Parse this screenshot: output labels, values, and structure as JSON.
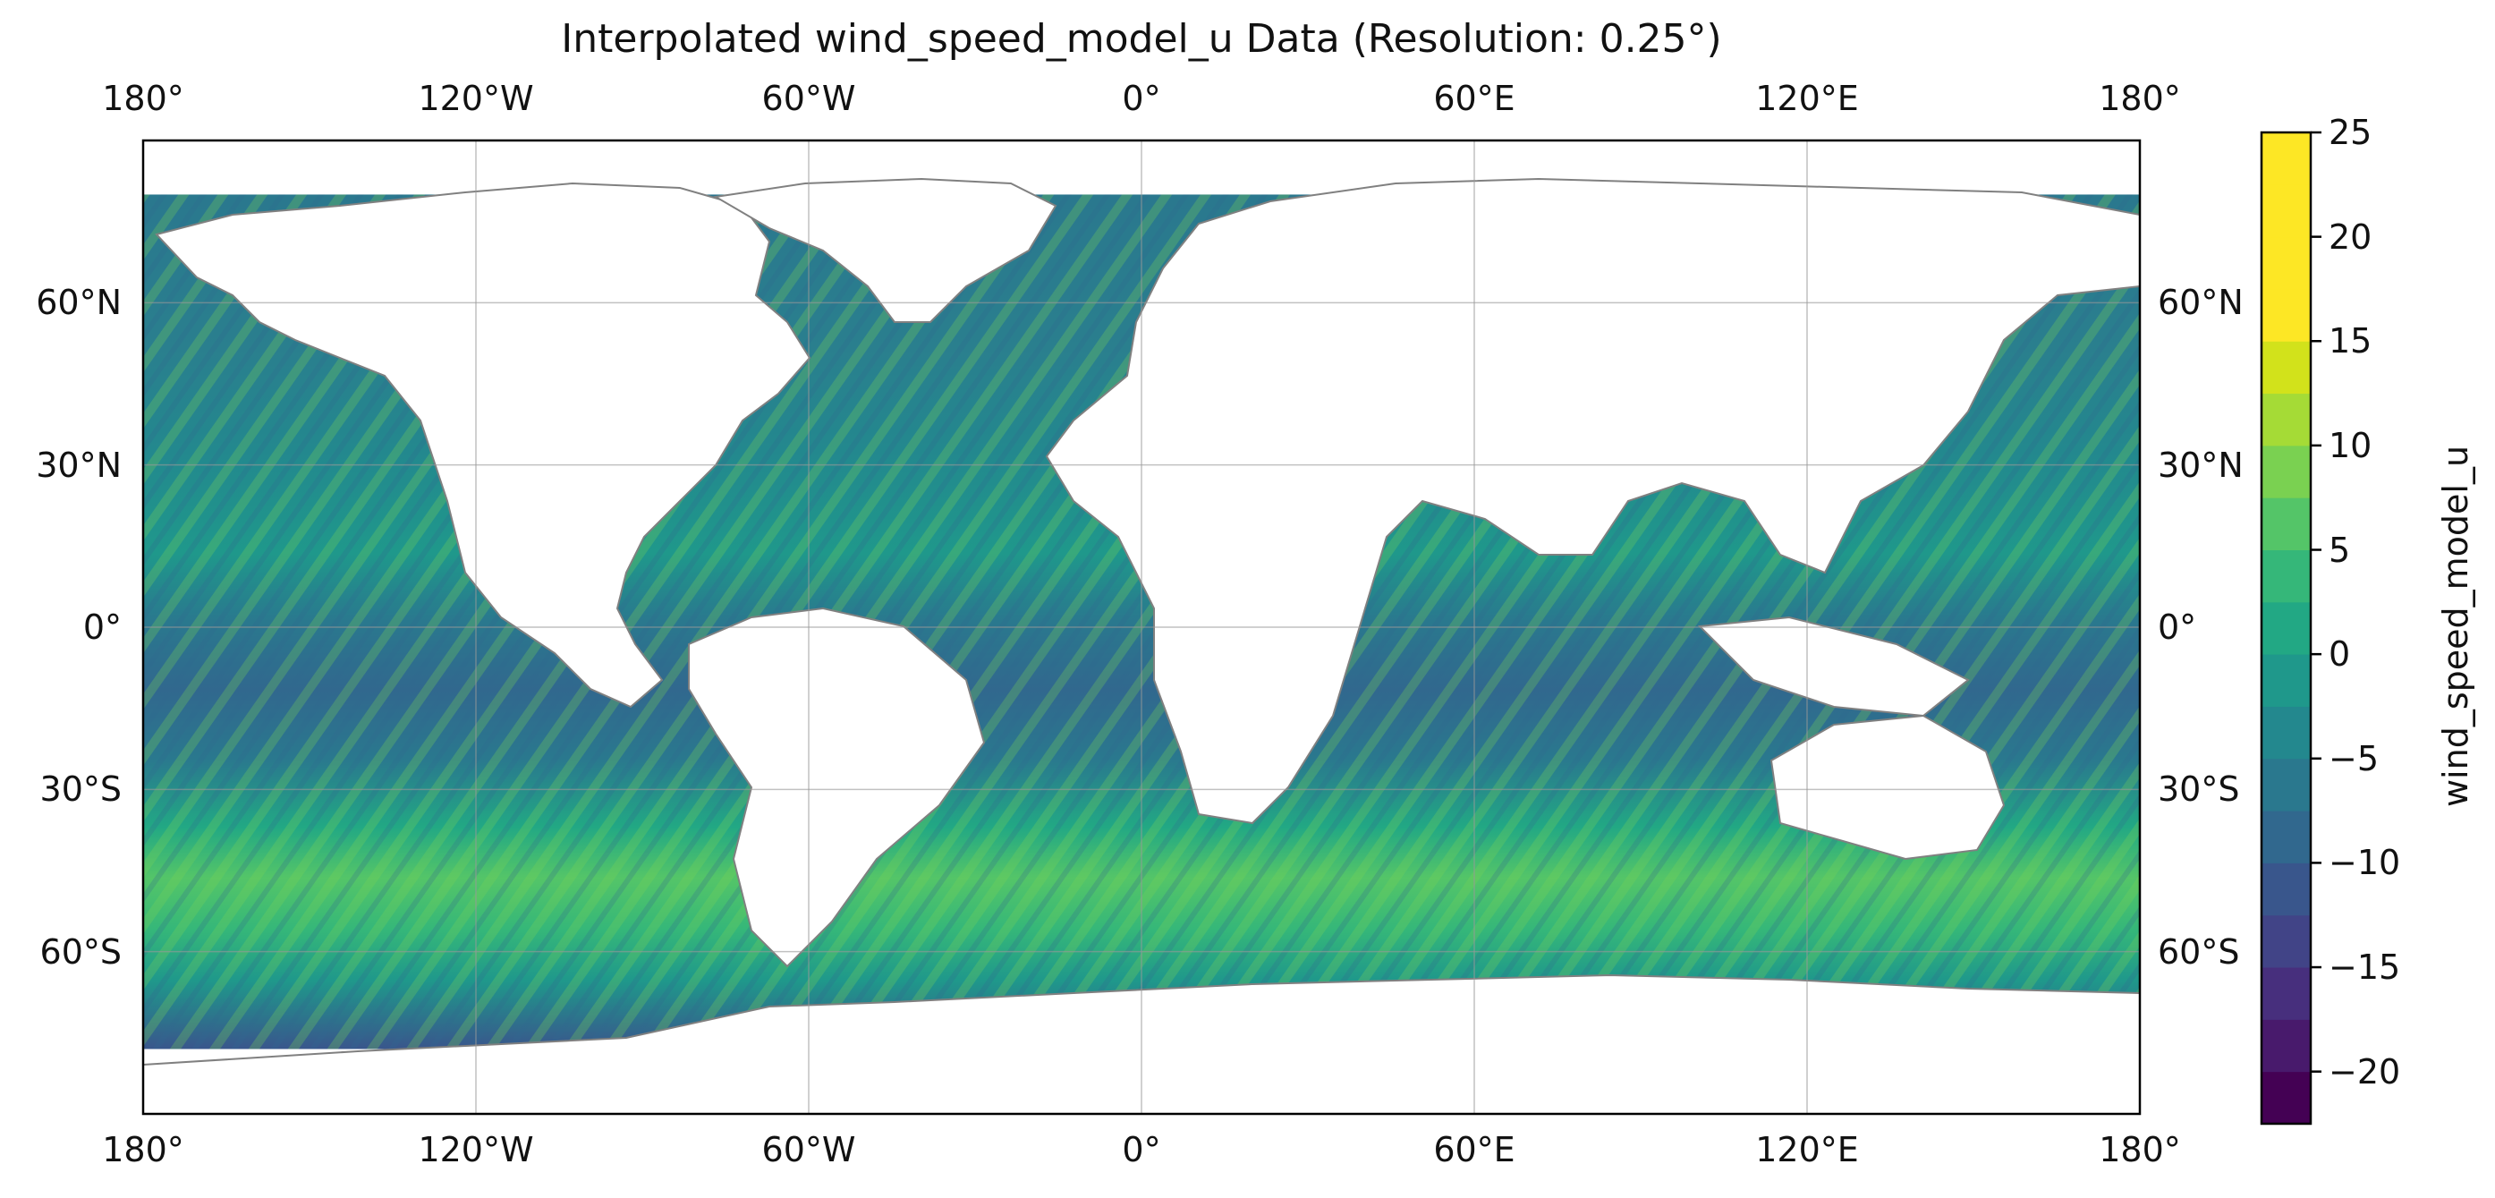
{
  "title": "Interpolated wind_speed_model_u Data (Resolution: 0.25°)",
  "map": {
    "projection": "PlateCarree",
    "lon_range": [
      -180,
      180
    ],
    "lat_range": [
      -90,
      90
    ],
    "lon_ticks": [
      {
        "value": -180,
        "label": "180°"
      },
      {
        "value": -120,
        "label": "120°W"
      },
      {
        "value": -60,
        "label": "60°W"
      },
      {
        "value": 0,
        "label": "0°"
      },
      {
        "value": 60,
        "label": "60°E"
      },
      {
        "value": 120,
        "label": "120°E"
      },
      {
        "value": 180,
        "label": "180°"
      }
    ],
    "lat_ticks": [
      {
        "value": 60,
        "label": "60°N"
      },
      {
        "value": 30,
        "label": "30°N"
      },
      {
        "value": 0,
        "label": "0°"
      },
      {
        "value": -30,
        "label": "30°S"
      },
      {
        "value": -60,
        "label": "60°S"
      }
    ],
    "gridlines": true,
    "data_lat_extent": [
      -78,
      80
    ],
    "land_color": "#ffffff",
    "coastline_color": "#808080"
  },
  "colorbar": {
    "label": "wind_speed_model_u",
    "range": [
      -22.5,
      25
    ],
    "ticks": [
      {
        "value": 25,
        "label": "25"
      },
      {
        "value": 20,
        "label": "20"
      },
      {
        "value": 15,
        "label": "15"
      },
      {
        "value": 10,
        "label": "10"
      },
      {
        "value": 5,
        "label": "5"
      },
      {
        "value": 0,
        "label": "0"
      },
      {
        "value": -5,
        "label": "−5"
      },
      {
        "value": -10,
        "label": "−10"
      },
      {
        "value": -15,
        "label": "−15"
      },
      {
        "value": -20,
        "label": "−20"
      }
    ],
    "levels": [
      -22.5,
      -20,
      -17.5,
      -15,
      -12.5,
      -10,
      -7.5,
      -5,
      -2.5,
      0,
      2.5,
      5,
      7.5,
      10,
      12.5,
      15,
      17.5,
      20,
      22.5,
      25
    ],
    "colors": [
      "#440154",
      "#481a6c",
      "#472f7d",
      "#414487",
      "#39568c",
      "#31688e",
      "#2a788e",
      "#23888e",
      "#1f988b",
      "#22a884",
      "#35b779",
      "#54c568",
      "#7ad151",
      "#a5db36",
      "#d2e21b",
      "#fde725",
      "#fde725",
      "#fde725",
      "#fde725"
    ]
  }
}
